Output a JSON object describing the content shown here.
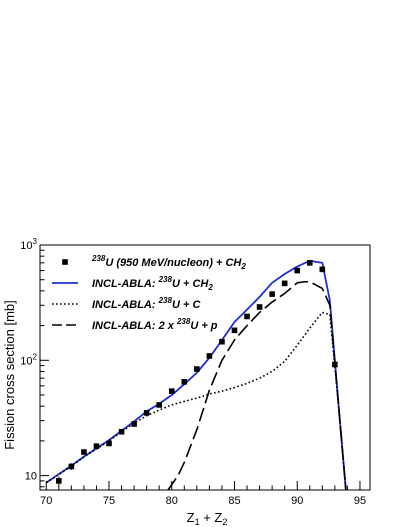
{
  "chart_data": {
    "type": "line",
    "title": "",
    "xlabel_main": "Z",
    "xlabel_sub1": "1",
    "xlabel_plus": " + Z",
    "xlabel_sub2": "2",
    "ylabel": "Fission cross section [mb]",
    "xlim": [
      69.5,
      95.8
    ],
    "ylim": [
      7.5,
      1000
    ],
    "yscale": "log",
    "xticks": [
      70,
      75,
      80,
      85,
      90,
      95
    ],
    "xtick_labels": [
      "70",
      "75",
      "80",
      "85",
      "90",
      "95"
    ],
    "ytick_labels": [
      {
        "value": 10,
        "base": "10",
        "exp": ""
      },
      {
        "value": 100,
        "base": "10",
        "exp": "2"
      },
      {
        "value": 1000,
        "base": "10",
        "exp": "3"
      }
    ],
    "legend_position": "top-left",
    "legend": [
      {
        "series": "data",
        "pre": "",
        "sup": "238",
        "main": "U (950 MeV/nucleon) + CH",
        "sub": "2"
      },
      {
        "series": "incl_ch2",
        "pre": "INCL-ABLA:  ",
        "sup": "238",
        "main": "U + CH",
        "sub": "2"
      },
      {
        "series": "incl_c",
        "pre": "INCL-ABLA:  ",
        "sup": "238",
        "main": "U + C",
        "sub": ""
      },
      {
        "series": "incl_p",
        "pre": "INCL-ABLA: 2  x ",
        "sup": "238",
        "main": "U + p",
        "sub": ""
      }
    ],
    "series": [
      {
        "id": "data",
        "style": "markers",
        "color": "#000000",
        "points": [
          {
            "x": 71,
            "y": 9,
            "err": 0.8
          },
          {
            "x": 72,
            "y": 12,
            "err": 0.8
          },
          {
            "x": 73,
            "y": 16,
            "err": 0.8
          },
          {
            "x": 74,
            "y": 18,
            "err": 0.8
          },
          {
            "x": 75,
            "y": 19,
            "err": 0.8
          },
          {
            "x": 76,
            "y": 24,
            "err": 1
          },
          {
            "x": 77,
            "y": 28,
            "err": 1
          },
          {
            "x": 78,
            "y": 35,
            "err": 1.5
          },
          {
            "x": 79,
            "y": 41,
            "err": 2
          },
          {
            "x": 80,
            "y": 54,
            "err": 2
          },
          {
            "x": 81,
            "y": 65,
            "err": 3
          },
          {
            "x": 82,
            "y": 84,
            "err": 3
          },
          {
            "x": 83,
            "y": 109,
            "err": 4
          },
          {
            "x": 84,
            "y": 145,
            "err": 5
          },
          {
            "x": 85,
            "y": 182,
            "err": 6
          },
          {
            "x": 86,
            "y": 240,
            "err": 8
          },
          {
            "x": 87,
            "y": 290,
            "err": 9
          },
          {
            "x": 88,
            "y": 375,
            "err": 12
          },
          {
            "x": 89,
            "y": 465,
            "err": 15
          },
          {
            "x": 90,
            "y": 600,
            "err": 20
          },
          {
            "x": 91,
            "y": 700,
            "err": 25
          },
          {
            "x": 92,
            "y": 615,
            "err": 22
          },
          {
            "x": 93,
            "y": 92,
            "err": 5
          }
        ]
      },
      {
        "id": "incl_ch2",
        "style": "solid",
        "color": "#1f2ed0",
        "x": [
          70,
          71,
          72,
          73,
          74,
          75,
          76,
          77,
          78,
          79,
          80,
          81,
          82,
          83,
          84,
          85,
          86,
          87,
          88,
          89,
          90,
          91,
          92,
          92.6,
          93.3,
          93.9
        ],
        "y": [
          8.7,
          10.3,
          12.2,
          14.6,
          17.2,
          20.3,
          24.5,
          29.5,
          36,
          42,
          50,
          62,
          78,
          105,
          150,
          215,
          275,
          355,
          470,
          560,
          650,
          730,
          700,
          330,
          40,
          7
        ]
      },
      {
        "id": "incl_c",
        "style": "dotted",
        "color": "#000000",
        "x": [
          70,
          71,
          72,
          73,
          74,
          75,
          76,
          77,
          78,
          79,
          80,
          81,
          82,
          83,
          84,
          85,
          86,
          87,
          88,
          89,
          90,
          91,
          92,
          92.6,
          93.3,
          93.9
        ],
        "y": [
          8.7,
          10.2,
          12.1,
          14.5,
          17,
          20,
          24,
          28.5,
          33,
          37,
          41,
          44,
          47,
          51,
          54,
          58,
          63,
          70,
          80,
          98,
          135,
          190,
          260,
          250,
          40,
          7
        ]
      },
      {
        "id": "incl_p",
        "style": "dashed",
        "color": "#000000",
        "x": [
          79.7,
          80.5,
          81,
          82,
          83,
          84,
          85,
          86,
          87,
          88,
          89,
          90,
          90.6,
          91,
          92,
          92.6,
          93.3,
          93.9
        ],
        "y": [
          7.5,
          10,
          13,
          25,
          55,
          100,
          150,
          200,
          260,
          320,
          380,
          470,
          480,
          480,
          420,
          300,
          40,
          7
        ]
      }
    ]
  }
}
